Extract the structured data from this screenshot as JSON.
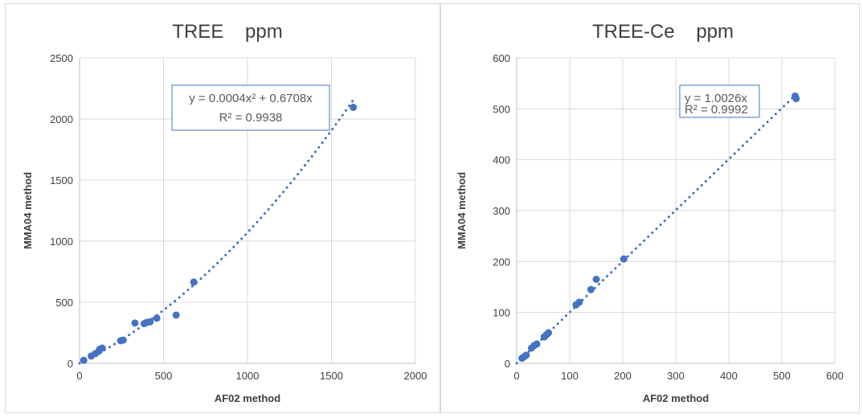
{
  "chart_data": [
    {
      "type": "scatter",
      "title": "TREE    ppm",
      "xlabel": "AF02 method",
      "ylabel": "MMA04 method",
      "xlim": [
        0,
        2000
      ],
      "ylim": [
        0,
        2500
      ],
      "xticks": [
        0,
        500,
        1000,
        1500,
        2000
      ],
      "yticks": [
        0,
        500,
        1000,
        1500,
        2000,
        2500
      ],
      "grid": true,
      "series": [
        {
          "color": "#4472c4",
          "points": [
            [
              25,
              25
            ],
            [
              70,
              60
            ],
            [
              95,
              80
            ],
            [
              115,
              100
            ],
            [
              120,
              115
            ],
            [
              135,
              125
            ],
            [
              245,
              185
            ],
            [
              260,
              190
            ],
            [
              330,
              330
            ],
            [
              385,
              325
            ],
            [
              400,
              335
            ],
            [
              420,
              340
            ],
            [
              460,
              370
            ],
            [
              575,
              395
            ],
            [
              680,
              665
            ],
            [
              1630,
              2095
            ]
          ]
        }
      ],
      "trendline": {
        "type": "polynomial",
        "a": 0.0004,
        "b": 0.6708,
        "x_range": [
          0,
          1640
        ],
        "style": "dotted",
        "color": "#4472c4",
        "equation": "y = 0.0004x² + 0.6708x",
        "r2": "R² = 0.9938"
      }
    },
    {
      "type": "scatter",
      "title": "TREE-Ce    ppm",
      "xlabel": "AF02 method",
      "ylabel": "MMA04 method",
      "xlim": [
        0,
        600
      ],
      "ylim": [
        0,
        600
      ],
      "xticks": [
        0,
        100,
        200,
        300,
        400,
        500,
        600
      ],
      "yticks": [
        0,
        100,
        200,
        300,
        400,
        500,
        600
      ],
      "grid": true,
      "series": [
        {
          "color": "#4472c4",
          "points": [
            [
              10,
              10
            ],
            [
              14,
              13
            ],
            [
              18,
              16
            ],
            [
              28,
              30
            ],
            [
              33,
              35
            ],
            [
              38,
              38
            ],
            [
              52,
              52
            ],
            [
              56,
              56
            ],
            [
              60,
              60
            ],
            [
              112,
              115
            ],
            [
              118,
              120
            ],
            [
              140,
              145
            ],
            [
              150,
              165
            ],
            [
              202,
              205
            ],
            [
              525,
              525
            ],
            [
              527,
              520
            ]
          ]
        }
      ],
      "trendline": {
        "type": "linear",
        "a": 0,
        "b": 1.0026,
        "x_range": [
          0,
          525
        ],
        "style": "dotted",
        "color": "#4472c4",
        "equation": "y = 1.0026x",
        "r2": "R² = 0.9992"
      }
    }
  ]
}
